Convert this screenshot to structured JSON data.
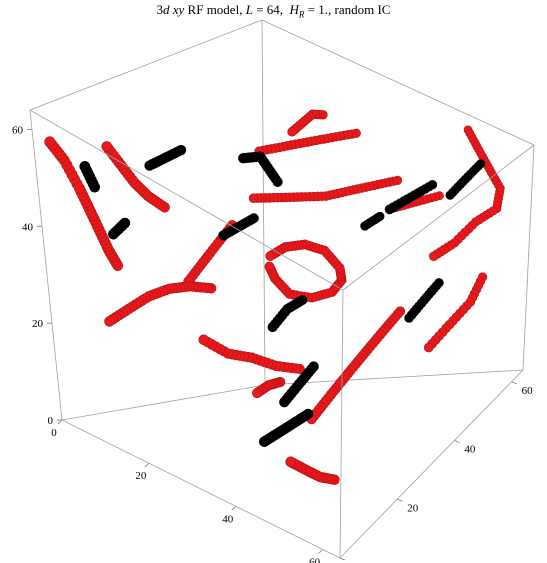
{
  "chart_data": {
    "type": "scatter",
    "dimensions": 3,
    "title": {
      "model_prefix": "3",
      "model_d": "d",
      "model_xy": "xy",
      "model_suffix": "RF model,",
      "L_label": "L",
      "L_value": "= 64,",
      "H_label": "H",
      "H_sub": "R",
      "H_value": "= 1.,",
      "ic": "random IC"
    },
    "axes": {
      "x": {
        "range": [
          0,
          64
        ],
        "ticks": [
          "0",
          "20",
          "40",
          "60"
        ]
      },
      "y": {
        "range": [
          0,
          64
        ],
        "ticks": [
          "0",
          "20",
          "40",
          "60"
        ]
      },
      "z": {
        "range": [
          0,
          64
        ],
        "ticks": [
          "0",
          "20",
          "40",
          "60"
        ]
      }
    },
    "box": true,
    "grid": false,
    "series": [
      {
        "color": "#e8191c",
        "curves": [
          [
            [
              2,
              2,
              58
            ],
            [
              4,
              3,
              55
            ],
            [
              6,
              4,
              50
            ],
            [
              7,
              5,
              46
            ],
            [
              8,
              6,
              42
            ],
            [
              9,
              7,
              38
            ],
            [
              10,
              8,
              35
            ]
          ],
          [
            [
              8,
              10,
              58
            ],
            [
              10,
              11,
              55
            ],
            [
              12,
              12,
              52
            ],
            [
              14,
              13,
              50
            ],
            [
              16,
              15,
              48
            ]
          ],
          [
            [
              4,
              12,
              20
            ],
            [
              8,
              13,
              24
            ],
            [
              12,
              14,
              28
            ],
            [
              16,
              15,
              31
            ],
            [
              20,
              16,
              33
            ],
            [
              24,
              17,
              34
            ]
          ],
          [
            [
              24,
              14,
              24
            ],
            [
              28,
              16,
              22
            ],
            [
              32,
              18,
              22
            ],
            [
              36,
              20,
              21
            ],
            [
              40,
              22,
              21
            ]
          ],
          [
            [
              28,
              30,
              38
            ],
            [
              30,
              32,
              40
            ],
            [
              33,
              34,
              41
            ],
            [
              36,
              36,
              40
            ],
            [
              38,
              38,
              36
            ],
            [
              37,
              40,
              32
            ],
            [
              34,
              41,
              28
            ],
            [
              30,
              40,
              26
            ],
            [
              27,
              37,
              27
            ],
            [
              26,
              34,
              31
            ],
            [
              27,
              31,
              35
            ]
          ],
          [
            [
              20,
              36,
              45
            ],
            [
              24,
              38,
              46
            ],
            [
              28,
              40,
              47
            ],
            [
              32,
              42,
              48
            ],
            [
              36,
              44,
              50
            ],
            [
              40,
              46,
              52
            ],
            [
              44,
              48,
              54
            ]
          ],
          [
            [
              20,
              38,
              54
            ],
            [
              24,
              40,
              56
            ],
            [
              28,
              42,
              58
            ],
            [
              32,
              44,
              60
            ],
            [
              36,
              46,
              62
            ]
          ],
          [
            [
              26,
              40,
              60
            ],
            [
              28,
              42,
              63
            ],
            [
              30,
              44,
              66
            ]
          ],
          [
            [
              30,
              22,
              12
            ],
            [
              32,
              23,
              14
            ],
            [
              34,
              24,
              15
            ]
          ],
          [
            [
              46,
              10,
              8
            ],
            [
              48,
              12,
              6
            ],
            [
              50,
              14,
              4
            ],
            [
              52,
              16,
              3
            ]
          ],
          [
            [
              44,
              20,
              12
            ],
            [
              46,
              22,
              16
            ],
            [
              48,
              24,
              20
            ],
            [
              50,
              26,
              24
            ],
            [
              52,
              28,
              28
            ],
            [
              54,
              30,
              32
            ],
            [
              56,
              32,
              36
            ]
          ],
          [
            [
              58,
              40,
              46
            ],
            [
              60,
              44,
              48
            ],
            [
              62,
              48,
              52
            ],
            [
              64,
              52,
              54
            ],
            [
              62,
              56,
              56
            ],
            [
              58,
              58,
              58
            ],
            [
              54,
              60,
              60
            ],
            [
              50,
              62,
              62
            ]
          ],
          [
            [
              60,
              36,
              26
            ],
            [
              62,
              40,
              30
            ],
            [
              64,
              44,
              34
            ],
            [
              64,
              48,
              38
            ]
          ],
          [
            [
              40,
              52,
              44
            ],
            [
              44,
              54,
              46
            ],
            [
              48,
              56,
              48
            ]
          ],
          [
            [
              12,
              26,
              28
            ],
            [
              14,
              28,
              32
            ],
            [
              16,
              30,
              36
            ],
            [
              18,
              32,
              40
            ]
          ]
        ]
      },
      {
        "color": "#000000",
        "curves": [
          [
            [
              6,
              6,
              54
            ],
            [
              7,
              7,
              50
            ]
          ],
          [
            [
              8,
              10,
              40
            ],
            [
              10,
              11,
              43
            ]
          ],
          [
            [
              14,
              14,
              56
            ],
            [
              16,
              16,
              58
            ],
            [
              18,
              18,
              60
            ]
          ],
          [
            [
              30,
              20,
              70
            ],
            [
              31,
              22,
              66
            ],
            [
              32,
              24,
              62
            ],
            [
              33,
              26,
              58
            ]
          ],
          [
            [
              22,
              24,
              42
            ],
            [
              24,
              26,
              44
            ],
            [
              26,
              28,
              46
            ]
          ],
          [
            [
              34,
              22,
              28
            ],
            [
              36,
              24,
              32
            ],
            [
              38,
              26,
              34
            ]
          ],
          [
            [
              42,
              14,
              18
            ],
            [
              44,
              16,
              22
            ],
            [
              46,
              18,
              26
            ]
          ],
          [
            [
              40,
              10,
              10
            ],
            [
              42,
              12,
              12
            ],
            [
              44,
              14,
              14
            ],
            [
              46,
              16,
              16
            ]
          ],
          [
            [
              52,
              34,
              58
            ],
            [
              54,
              38,
              60
            ],
            [
              56,
              42,
              62
            ]
          ],
          [
            [
              54,
              38,
              30
            ],
            [
              56,
              40,
              34
            ],
            [
              58,
              42,
              38
            ]
          ],
          [
            [
              56,
              48,
              56
            ],
            [
              58,
              50,
              60
            ],
            [
              60,
              52,
              64
            ]
          ],
          [
            [
              38,
              46,
              42
            ],
            [
              40,
              48,
              44
            ]
          ]
        ]
      }
    ]
  }
}
